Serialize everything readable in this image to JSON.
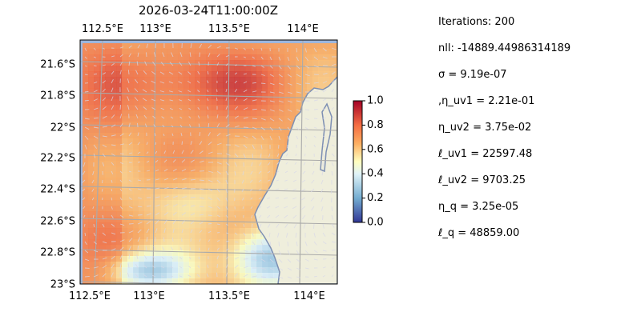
{
  "chart_data": {
    "type": "heatmap",
    "title": "2026-03-24T11:00:00Z",
    "x_ticks": [
      "112.5°E",
      "113°E",
      "113.5°E",
      "114°E"
    ],
    "y_ticks": [
      "21.6°S",
      "21.8°S",
      "22°S",
      "22.2°S",
      "22.4°S",
      "22.6°S",
      "22.8°S",
      "23°S"
    ],
    "colorbar": {
      "min": 0.0,
      "max": 1.0,
      "ticks": [
        "0.0",
        "0.2",
        "0.4",
        "0.6",
        "0.8",
        "1.0"
      ],
      "colormap": "RdYlBu_r"
    },
    "grid": true,
    "overlay": "current vectors (quiver)",
    "land_color": "#efeedc",
    "ocean_color": "#9cb6dd"
  },
  "stats": [
    "Iterations: 200",
    "nll: -14889.44986314189",
    "σ = 9.19e-07",
    ",η_uv1 = 2.21e-01",
    "η_uv2 = 3.75e-02",
    "ℓ_uv1 = 22597.48",
    "ℓ_uv2 = 9703.25",
    "η_q = 3.25e-05",
    "ℓ_q = 48859.00"
  ]
}
